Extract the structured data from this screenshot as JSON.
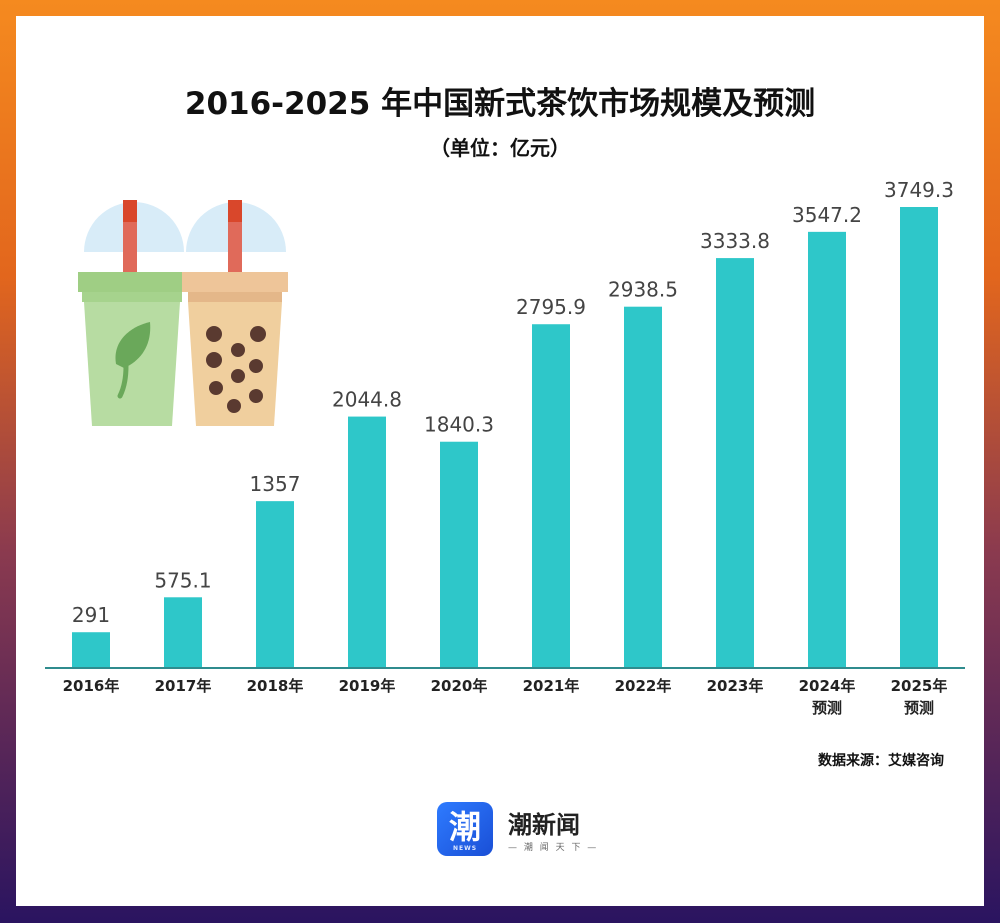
{
  "title": "2016-2025 年中国新式茶饮市场规模及预测",
  "subtitle": "（单位：亿元）",
  "source": "数据来源：艾媒咨询",
  "brand": {
    "logo_char": "潮",
    "logo_sub": "NEWS",
    "name": "潮新闻",
    "tagline": "— 潮 闻 天 下 —"
  },
  "colors": {
    "bar": "#2ec7c9",
    "axis": "#2f8c8e",
    "label": "#444444"
  },
  "illustration": {
    "left_cup": "green-tea-cup-icon",
    "right_cup": "bubble-milk-tea-cup-icon"
  },
  "chart_data": {
    "type": "bar",
    "categories": [
      "2016年",
      "2017年",
      "2018年",
      "2019年",
      "2020年",
      "2021年",
      "2022年",
      "2023年",
      "2024年\n预测",
      "2025年\n预测"
    ],
    "values": [
      291,
      575.1,
      1357,
      2044.8,
      1840.3,
      2795.9,
      2938.5,
      3333.8,
      3547.2,
      3749.3
    ],
    "value_labels": [
      "291",
      "575.1",
      "1357",
      "2044.8",
      "1840.3",
      "2795.9",
      "2938.5",
      "3333.8",
      "3547.2",
      "3749.3"
    ],
    "title": "2016-2025 年中国新式茶饮市场规模及预测",
    "subtitle": "（单位：亿元）",
    "ylim": [
      0,
      3749.3
    ],
    "grid": false,
    "legend": "none"
  }
}
